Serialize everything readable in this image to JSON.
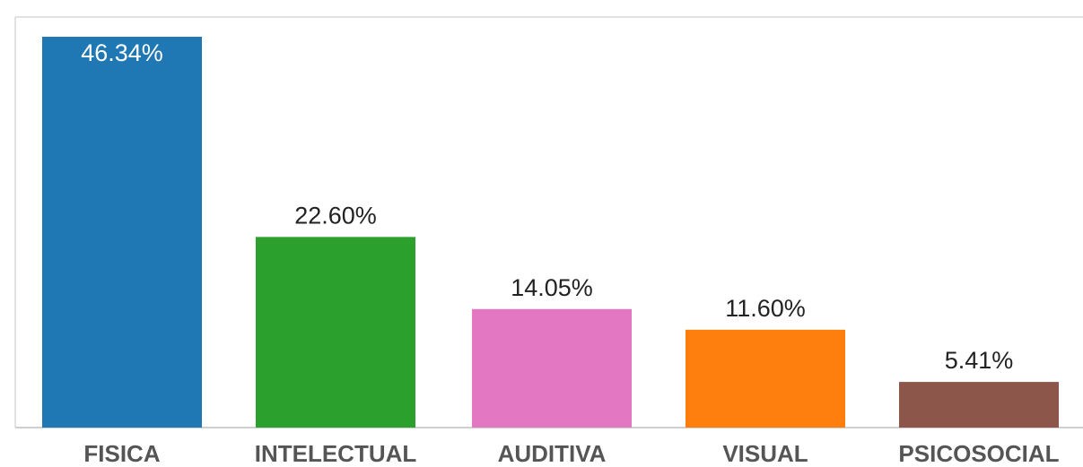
{
  "chart_data": {
    "type": "bar",
    "title": "",
    "xlabel": "",
    "ylabel": "",
    "categories": [
      "FISICA",
      "INTELECTUAL",
      "AUDITIVA",
      "VISUAL",
      "PSICOSOCIAL"
    ],
    "values": [
      46.34,
      22.6,
      14.05,
      11.6,
      5.41
    ],
    "value_labels": [
      "46.34%",
      "22.60%",
      "14.05%",
      "11.60%",
      "5.41%"
    ],
    "ylim": [
      0,
      46.34
    ],
    "grid": false,
    "legend": "none",
    "colors": [
      "#1f77b4",
      "#2ca02c",
      "#e377c2",
      "#ff7f0e",
      "#8c564b"
    ],
    "label_colors": [
      "#ffffff",
      "#222222",
      "#222222",
      "#222222",
      "#222222"
    ],
    "axis_color": "#d0d0d0",
    "tick_label_color": "#555555"
  }
}
